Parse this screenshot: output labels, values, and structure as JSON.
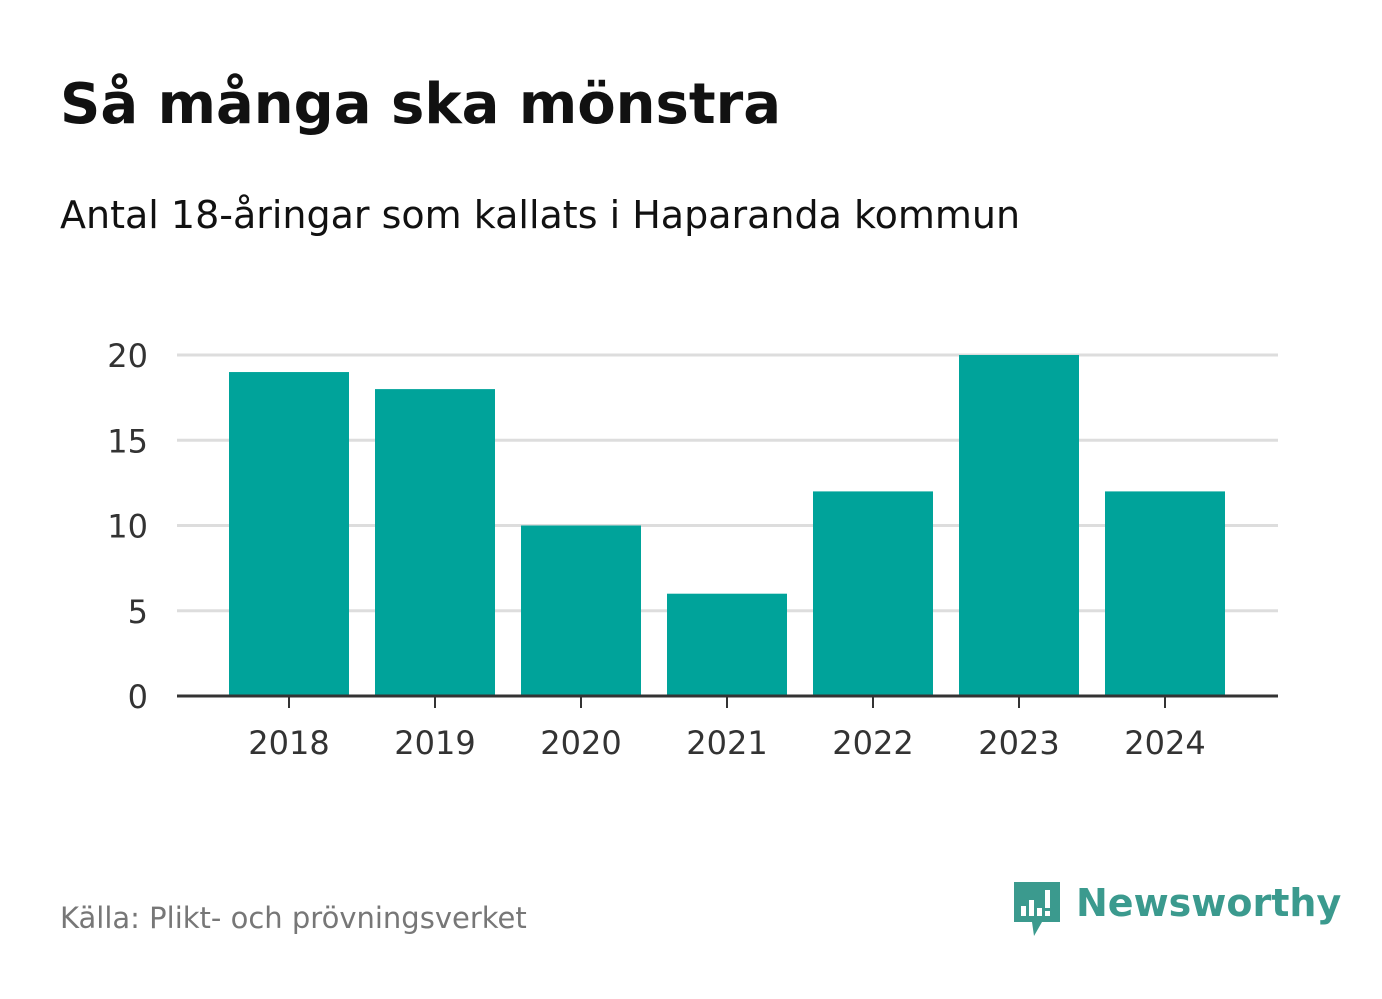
{
  "header": {
    "title": "Så många ska mönstra",
    "subtitle": "Antal 18-åringar som kallats i Haparanda kommun"
  },
  "footer": {
    "source": "Källa: Plikt- och prövningsverket",
    "brand": "Newsworthy",
    "brand_icon": "newsworthy-logo-icon"
  },
  "colors": {
    "bar": "#00a39a",
    "grid": "#dddddd",
    "axis": "#333333",
    "brand": "#3b9a8e"
  },
  "chart_data": {
    "type": "bar",
    "categories": [
      "2018",
      "2019",
      "2020",
      "2021",
      "2022",
      "2023",
      "2024"
    ],
    "values": [
      19,
      18,
      10,
      6,
      12,
      20,
      12
    ],
    "ylim": [
      0,
      20
    ],
    "yticks": [
      0,
      5,
      10,
      15,
      20
    ],
    "grid": true,
    "xlabel": "",
    "ylabel": ""
  }
}
